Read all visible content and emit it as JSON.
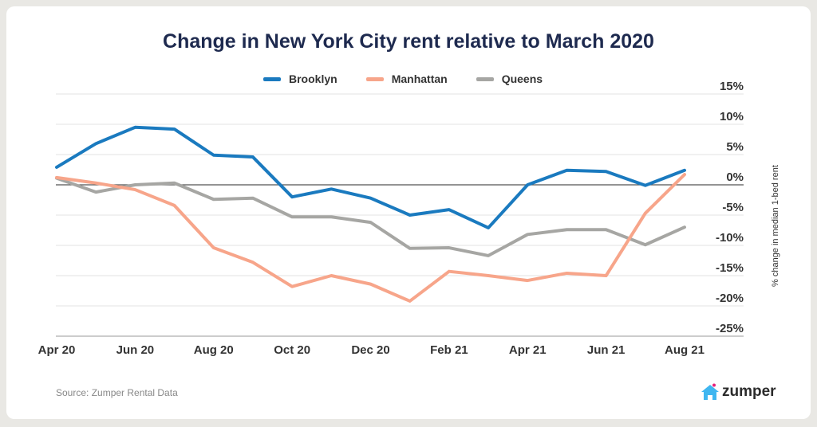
{
  "chart_data": {
    "type": "line",
    "title": "Change in New York City rent relative to March 2020",
    "ylabel": "% change in median 1-bed rent",
    "xlabel": "",
    "ylim": [
      -25,
      15
    ],
    "yticks": [
      15,
      10,
      5,
      0,
      -5,
      -10,
      -15,
      -20,
      -25
    ],
    "ytick_labels": [
      "15%",
      "10%",
      "5%",
      "0%",
      "-5%",
      "-10%",
      "-15%",
      "-20%",
      "-25%"
    ],
    "x": [
      "Apr 20",
      "May 20",
      "Jun 20",
      "Jul 20",
      "Aug 20",
      "Sep 20",
      "Oct 20",
      "Nov 20",
      "Dec 20",
      "Jan 21",
      "Feb 21",
      "Mar 21",
      "Apr 21",
      "May 21",
      "Jun 21",
      "Jul 21",
      "Aug 21"
    ],
    "xtick_labels": [
      "Apr 20",
      "Jun 20",
      "Aug 20",
      "Oct 20",
      "Dec 20",
      "Feb 21",
      "Apr 21",
      "Jun 21",
      "Aug 21"
    ],
    "legend_position": "top-center",
    "series": [
      {
        "name": "Brooklyn",
        "color": "#1a7abf",
        "values": [
          2.9,
          6.8,
          9.5,
          9.2,
          4.9,
          4.6,
          -2.0,
          -0.7,
          -2.2,
          -5.0,
          -4.1,
          -7.1,
          0,
          2.4,
          2.2,
          -0.1,
          2.4
        ]
      },
      {
        "name": "Manhattan",
        "color": "#f7a58a",
        "values": [
          1.2,
          0.3,
          -0.8,
          -3.4,
          -10.4,
          -12.8,
          -16.8,
          -15.0,
          -16.4,
          -19.2,
          -14.3,
          -15.0,
          -15.8,
          -14.6,
          -15.0,
          -4.7,
          1.7
        ]
      },
      {
        "name": "Queens",
        "color": "#a6a6a3",
        "values": [
          1.1,
          -1.2,
          0,
          0.3,
          -2.4,
          -2.2,
          -5.3,
          -5.3,
          -6.2,
          -10.5,
          -10.4,
          -11.7,
          -8.2,
          -7.4,
          -7.4,
          -9.9,
          -7.0
        ]
      }
    ]
  },
  "source": "Source: Zumper Rental Data",
  "logo_text": "zumper"
}
